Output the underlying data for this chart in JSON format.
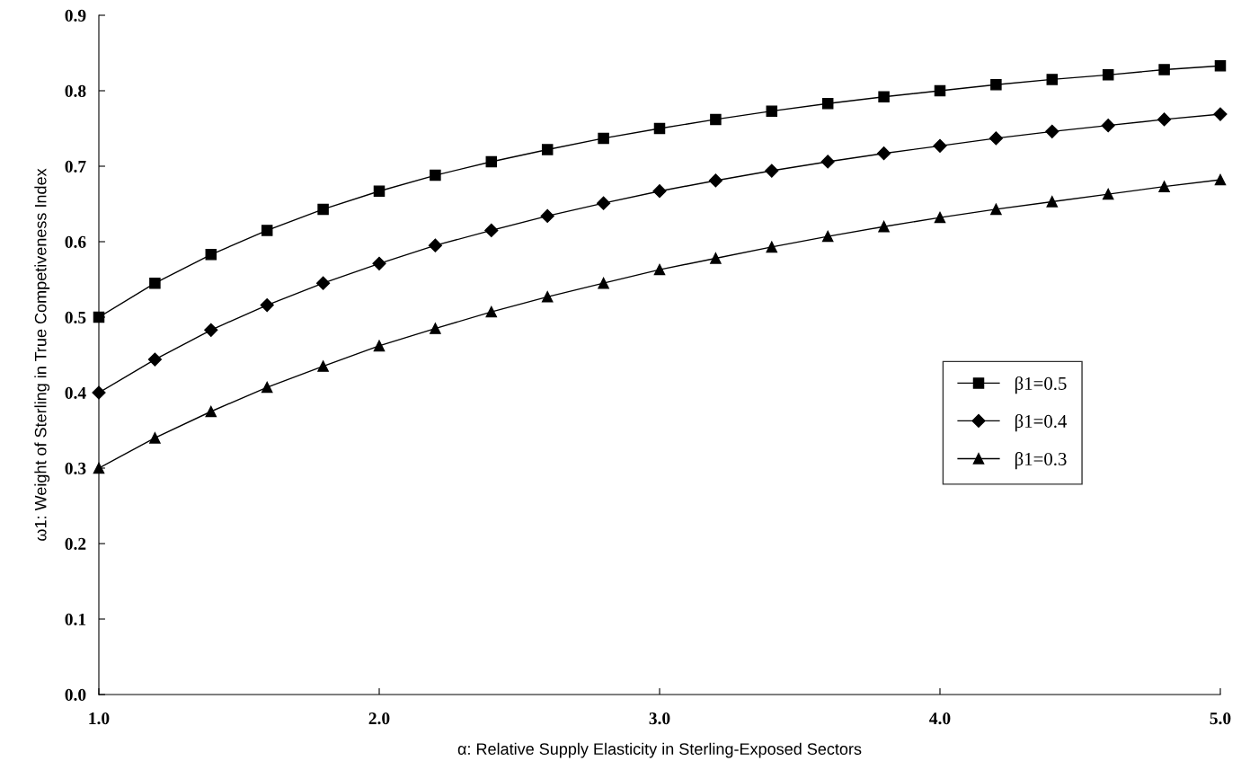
{
  "chart_data": {
    "type": "line",
    "xlabel": "α: Relative Supply Elasticity in Sterling-Exposed Sectors",
    "ylabel": "ω1: Weight of Sterling in True Competiveness Index",
    "x": [
      1.0,
      1.2,
      1.4,
      1.6,
      1.8,
      2.0,
      2.2,
      2.4,
      2.6,
      2.8,
      3.0,
      3.2,
      3.4,
      3.6,
      3.8,
      4.0,
      4.2,
      4.4,
      4.6,
      4.8,
      5.0
    ],
    "series": [
      {
        "name": "β1=0.5",
        "color": "#000000",
        "marker": "square",
        "values": [
          0.5,
          0.545,
          0.583,
          0.615,
          0.643,
          0.667,
          0.688,
          0.706,
          0.722,
          0.737,
          0.75,
          0.762,
          0.773,
          0.783,
          0.792,
          0.8,
          0.808,
          0.815,
          0.821,
          0.828,
          0.833
        ]
      },
      {
        "name": "β1=0.4",
        "color": "#000000",
        "marker": "diamond",
        "values": [
          0.4,
          0.444,
          0.483,
          0.516,
          0.545,
          0.571,
          0.595,
          0.615,
          0.634,
          0.651,
          0.667,
          0.681,
          0.694,
          0.706,
          0.717,
          0.727,
          0.737,
          0.746,
          0.754,
          0.762,
          0.769
        ]
      },
      {
        "name": "β1=0.3",
        "color": "#000000",
        "marker": "triangle",
        "values": [
          0.3,
          0.34,
          0.375,
          0.407,
          0.435,
          0.462,
          0.485,
          0.507,
          0.527,
          0.545,
          0.563,
          0.578,
          0.593,
          0.607,
          0.62,
          0.632,
          0.643,
          0.653,
          0.663,
          0.673,
          0.682
        ]
      }
    ],
    "xlim": [
      1.0,
      5.0
    ],
    "xticks": [
      {
        "value": 1,
        "label": "1.0"
      },
      {
        "value": 2,
        "label": "2.0"
      },
      {
        "value": 3,
        "label": "3.0"
      },
      {
        "value": 4,
        "label": "4.0"
      },
      {
        "value": 5,
        "label": "5.0"
      }
    ],
    "ylim": [
      0,
      0.9
    ],
    "yticks": [
      {
        "value": 0,
        "label": "0.0"
      },
      0.1,
      0.2,
      0.3,
      0.4,
      0.5,
      0.6,
      0.7,
      0.8,
      0.9
    ],
    "grid": false,
    "legend": "right",
    "line_style": "solid"
  }
}
